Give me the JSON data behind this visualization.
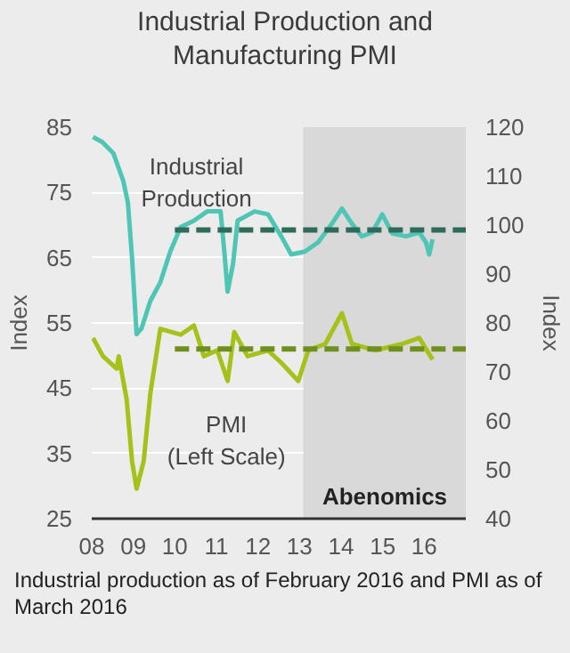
{
  "chart_data": {
    "type": "line",
    "title": "Industrial Production and Manufacturing PMI",
    "ylabel": "Index",
    "y2label": "Index",
    "xlim": [
      2008,
      2017
    ],
    "xticks": [
      {
        "value": 2008,
        "label": "08"
      },
      {
        "value": 2009,
        "label": "09"
      },
      {
        "value": 2010,
        "label": "10"
      },
      {
        "value": 2011,
        "label": "11"
      },
      {
        "value": 2012,
        "label": "12"
      },
      {
        "value": 2013,
        "label": "13"
      },
      {
        "value": 2014,
        "label": "14"
      },
      {
        "value": 2015,
        "label": "15"
      },
      {
        "value": 2016,
        "label": "16"
      }
    ],
    "ylim": [
      25,
      85
    ],
    "yticks": [
      25,
      35,
      45,
      55,
      65,
      75,
      85
    ],
    "y2lim": [
      40,
      120
    ],
    "y2ticks": [
      40,
      50,
      60,
      70,
      80,
      90,
      100,
      110,
      120
    ],
    "grid": "y",
    "bands": [
      {
        "axis": "x",
        "from": 2013.1,
        "to": 2017,
        "label": "Abenomics",
        "color": "#d9d9d9"
      }
    ],
    "series": [
      {
        "name": "Industrial Production",
        "color": "#4fc5b5",
        "axis": "y2",
        "x": [
          2008.03,
          2008.25,
          2008.52,
          2008.76,
          2008.87,
          2008.97,
          2009.08,
          2009.2,
          2009.41,
          2009.65,
          2009.89,
          2010.14,
          2010.46,
          2010.78,
          2011.1,
          2011.19,
          2011.27,
          2011.4,
          2011.51,
          2011.92,
          2012.24,
          2012.56,
          2012.8,
          2013.13,
          2013.45,
          2013.78,
          2014.02,
          2014.26,
          2014.5,
          2014.75,
          2014.99,
          2015.23,
          2015.56,
          2015.88,
          2016.04,
          2016.12,
          2016.2
        ],
        "values": [
          118,
          117,
          114.7,
          109,
          104.6,
          93.3,
          77.7,
          78.9,
          84.5,
          88.3,
          94.6,
          99.6,
          100.9,
          102.8,
          102.8,
          94.6,
          86.4,
          92.1,
          100.9,
          102.8,
          102.2,
          97.7,
          94,
          94.6,
          96.5,
          100.3,
          103.4,
          100.3,
          97.7,
          98.5,
          102.2,
          98.3,
          97.7,
          98.5,
          96.5,
          94,
          97.1
        ]
      },
      {
        "name": "PMI (Left Scale)",
        "color": "#a5c21a",
        "x": [
          2008.03,
          2008.27,
          2008.6,
          2008.65,
          2008.84,
          2008.97,
          2009.08,
          2009.25,
          2009.41,
          2009.65,
          2010.14,
          2010.46,
          2010.7,
          2011.02,
          2011.27,
          2011.43,
          2011.75,
          2012.24,
          2012.56,
          2012.97,
          2013.21,
          2013.62,
          2014.02,
          2014.26,
          2014.83,
          2015.48,
          2015.88,
          2016.2
        ],
        "values": [
          52.7,
          49.9,
          48,
          49.9,
          43.3,
          33.8,
          29.6,
          33.8,
          44.2,
          54.1,
          53.2,
          54.6,
          49.9,
          50.8,
          46.1,
          53.6,
          49.9,
          50.8,
          48.9,
          46.1,
          50.8,
          51.8,
          56.5,
          51.8,
          50.8,
          51.8,
          52.7,
          49.4
        ]
      },
      {
        "color": "#2f6b5a",
        "axis": "y2",
        "line_style": "dashed",
        "x": [
          2010,
          2017
        ],
        "values": [
          99,
          99
        ]
      },
      {
        "color": "#6f8f1f",
        "line_style": "dashed",
        "x": [
          2010,
          2017
        ],
        "values": [
          51,
          51
        ]
      }
    ],
    "annotations": [
      "Industrial production as of February 2016 and PMI as of March 2016"
    ]
  }
}
